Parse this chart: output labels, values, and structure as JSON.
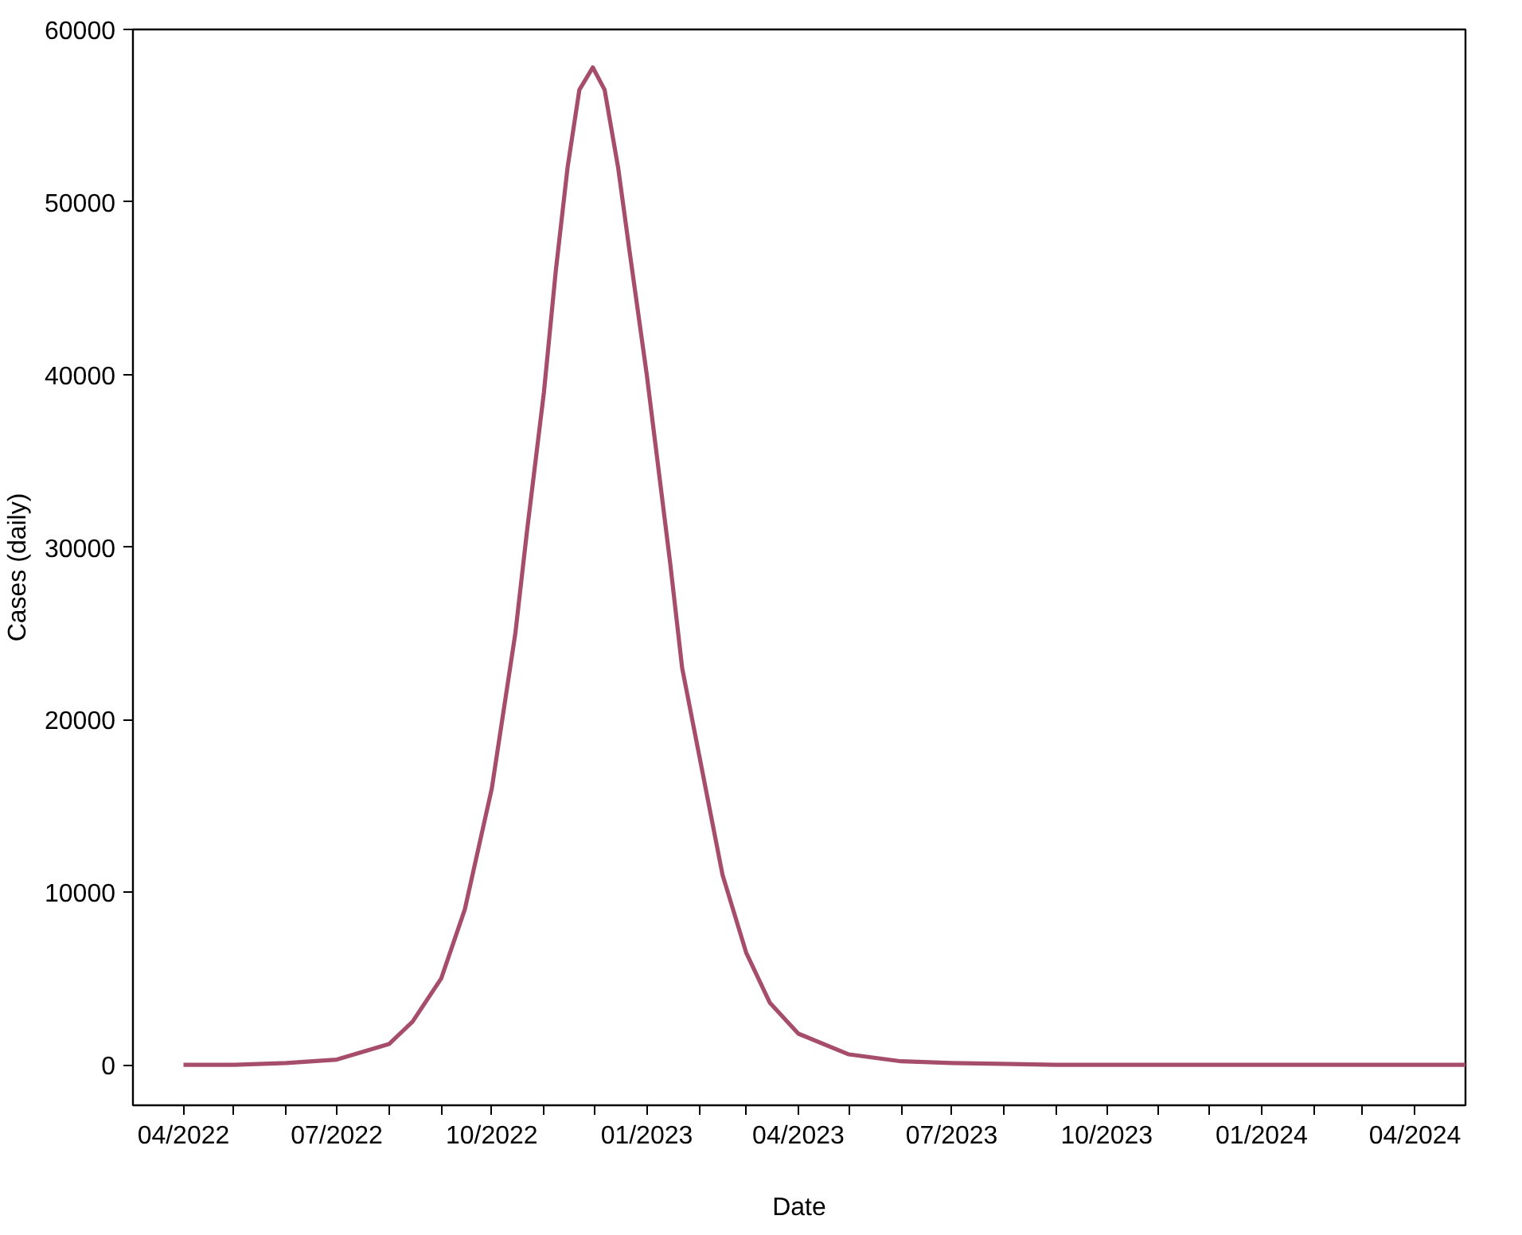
{
  "chart_data": {
    "type": "line",
    "xlabel": "Date",
    "ylabel": "Cases (daily)",
    "x": [
      "2022-04-01",
      "2022-05-01",
      "2022-06-01",
      "2022-07-01",
      "2022-08-01",
      "2022-08-15",
      "2022-09-01",
      "2022-09-15",
      "2022-10-01",
      "2022-10-15",
      "2022-10-22",
      "2022-11-01",
      "2022-11-08",
      "2022-11-15",
      "2022-11-22",
      "2022-11-30",
      "2022-12-07",
      "2022-12-15",
      "2022-12-22",
      "2023-01-01",
      "2023-01-08",
      "2023-01-15",
      "2023-01-22",
      "2023-02-01",
      "2023-02-15",
      "2023-03-01",
      "2023-03-15",
      "2023-04-01",
      "2023-05-01",
      "2023-06-01",
      "2023-07-01",
      "2023-09-01",
      "2023-12-01",
      "2024-05-01"
    ],
    "series": [
      {
        "color": "#a64d6b",
        "values": [
          0,
          0,
          100,
          300,
          1200,
          2500,
          5000,
          9000,
          16000,
          25000,
          31000,
          39000,
          46000,
          52000,
          56500,
          57800,
          56500,
          52000,
          47000,
          40000,
          34500,
          29000,
          23000,
          18000,
          11000,
          6500,
          3600,
          1800,
          600,
          200,
          100,
          0,
          0,
          0
        ]
      }
    ],
    "xlim": [
      "2022-03-02",
      "2024-05-01"
    ],
    "xticks": [
      {
        "value": "2022-04",
        "label": "04/2022"
      },
      {
        "value": "2022-05",
        "label": null
      },
      {
        "value": "2022-06",
        "label": null
      },
      {
        "value": "2022-07",
        "label": "07/2022"
      },
      {
        "value": "2022-08",
        "label": null
      },
      {
        "value": "2022-09",
        "label": null
      },
      {
        "value": "2022-10",
        "label": "10/2022"
      },
      {
        "value": "2022-11",
        "label": null
      },
      {
        "value": "2022-12",
        "label": null
      },
      {
        "value": "2023-01",
        "label": "01/2023"
      },
      {
        "value": "2023-02",
        "label": null
      },
      {
        "value": "2023-03",
        "label": null
      },
      {
        "value": "2023-04",
        "label": "04/2023"
      },
      {
        "value": "2023-05",
        "label": null
      },
      {
        "value": "2023-06",
        "label": null
      },
      {
        "value": "2023-07",
        "label": "07/2023"
      },
      {
        "value": "2023-08",
        "label": null
      },
      {
        "value": "2023-09",
        "label": null
      },
      {
        "value": "2023-10",
        "label": "10/2023"
      },
      {
        "value": "2023-11",
        "label": null
      },
      {
        "value": "2023-12",
        "label": null
      },
      {
        "value": "2024-01",
        "label": "01/2024"
      },
      {
        "value": "2024-02",
        "label": null
      },
      {
        "value": "2024-03",
        "label": null
      },
      {
        "value": "2024-04",
        "label": "04/2024"
      }
    ],
    "ylim": [
      -2350,
      60000
    ],
    "yticks": [
      0,
      10000,
      20000,
      30000,
      40000,
      50000,
      60000
    ],
    "grid": false,
    "marker": "none",
    "line_style": "solid"
  }
}
